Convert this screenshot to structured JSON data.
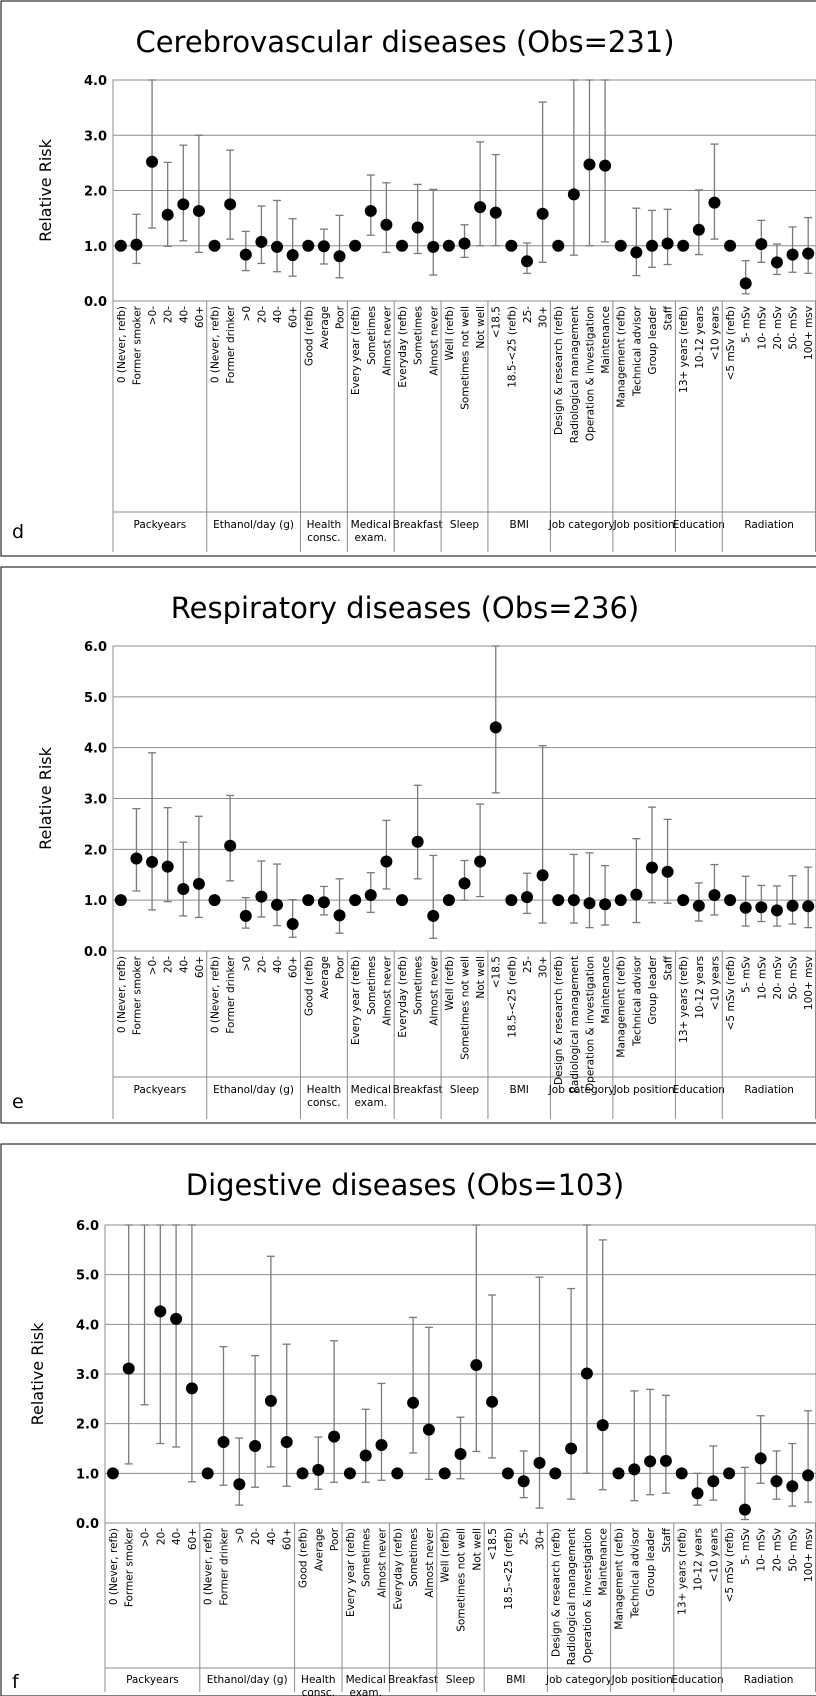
{
  "panels": [
    {
      "letter": "d",
      "title": "Cerebrovascular diseases (Obs=231)",
      "ylabel": "Relative Risk",
      "yticks": [
        "0.0",
        "1.0",
        "2.0",
        "3.0",
        "4.0"
      ]
    },
    {
      "letter": "e",
      "title": "Respiratory diseases (Obs=236)",
      "ylabel": "Relative Risk",
      "yticks": [
        "0.0",
        "1.0",
        "2.0",
        "3.0",
        "4.0",
        "5.0",
        "6.0"
      ]
    },
    {
      "letter": "f",
      "title": "Digestive diseases (Obs=103)",
      "ylabel": "Relative Risk",
      "yticks": [
        "0.0",
        "1.0",
        "2.0",
        "3.0",
        "4.0",
        "5.0",
        "6.0"
      ]
    }
  ],
  "categories": [
    "0 (Never, refb)",
    "Former smoker",
    ">0-",
    "20-",
    "40-",
    "60+",
    "0 (Never, refb)",
    "Former drinker",
    ">0",
    "20-",
    "40-",
    "60+",
    "Good (refb)",
    "Average",
    "Poor",
    "Every year (refb)",
    "Sometimes",
    "Almost never",
    "Everyday (refb)",
    "Sometimes",
    "Almost never",
    "Well (refb)",
    "Sometimes not well",
    "Not well",
    "<18.5",
    "18.5-<25 (refb)",
    "25-",
    "30+",
    "Design & research (refb)",
    "Radiological management",
    "Operation & investigation",
    "Maintenance",
    "Management (refb)",
    "Technical advisor",
    "Group leader",
    "Staff",
    "13+ years (refb)",
    "10-12 years",
    "<10 years",
    "<5 mSv (refb)",
    "5- mSv",
    "10- mSv",
    "20- mSv",
    "50- mSv",
    "100+ msv"
  ],
  "groups": [
    {
      "label": [
        "Packyears"
      ],
      "size": 6
    },
    {
      "label": [
        "Ethanol/day (g)"
      ],
      "size": 6
    },
    {
      "label": [
        "Health",
        "consc."
      ],
      "size": 3
    },
    {
      "label": [
        "Medical",
        "exam."
      ],
      "size": 3
    },
    {
      "label": [
        "Breakfast"
      ],
      "size": 3
    },
    {
      "label": [
        "Sleep"
      ],
      "size": 3
    },
    {
      "label": [
        "BMI"
      ],
      "size": 4
    },
    {
      "label": [
        "Job category"
      ],
      "size": 4
    },
    {
      "label": [
        "Job position"
      ],
      "size": 4
    },
    {
      "label": [
        "Education"
      ],
      "size": 3
    },
    {
      "label": [
        "Radiation"
      ],
      "size": 6
    }
  ],
  "chart_data": [
    {
      "type": "scatter",
      "title": "Cerebrovascular diseases (Obs=231)",
      "ylabel": "Relative Risk",
      "ylim": [
        0,
        4
      ],
      "grid": true,
      "values": [
        1.0,
        1.02,
        2.52,
        1.56,
        1.75,
        1.63,
        1.0,
        1.75,
        0.84,
        1.07,
        0.98,
        0.83,
        1.0,
        0.99,
        0.81,
        1.0,
        1.63,
        1.38,
        1.0,
        1.33,
        0.98,
        1.0,
        1.04,
        1.7,
        1.6,
        1.0,
        0.72,
        1.58,
        1.0,
        1.93,
        2.47,
        2.45,
        1.0,
        0.88,
        1.0,
        1.04,
        1.0,
        1.29,
        1.78,
        1.0,
        0.32,
        1.03,
        0.7,
        0.84,
        0.86
      ],
      "lower": [
        null,
        0.68,
        1.32,
        0.99,
        1.09,
        0.88,
        null,
        1.12,
        0.55,
        0.68,
        0.53,
        0.45,
        null,
        0.67,
        0.42,
        null,
        1.19,
        0.88,
        null,
        0.86,
        0.47,
        null,
        0.79,
        1.0,
        1.0,
        null,
        0.5,
        0.7,
        null,
        0.83,
        1.0,
        1.07,
        null,
        0.46,
        0.61,
        0.66,
        null,
        0.84,
        1.12,
        null,
        0.13,
        0.7,
        0.48,
        0.52,
        0.5
      ],
      "upper": [
        null,
        1.57,
        4.0,
        2.51,
        2.82,
        3.0,
        null,
        2.73,
        1.26,
        1.72,
        1.82,
        1.49,
        null,
        1.3,
        1.55,
        null,
        2.28,
        2.14,
        null,
        2.11,
        2.02,
        null,
        1.38,
        2.88,
        2.65,
        null,
        1.05,
        3.6,
        null,
        4.0,
        4.0,
        4.0,
        null,
        1.68,
        1.64,
        1.66,
        null,
        2.01,
        2.84,
        null,
        0.73,
        1.46,
        1.03,
        1.34,
        1.51
      ]
    },
    {
      "type": "scatter",
      "title": "Respiratory diseases (Obs=236)",
      "ylabel": "Relative Risk",
      "ylim": [
        0,
        6
      ],
      "grid": true,
      "values": [
        1.0,
        1.82,
        1.75,
        1.66,
        1.22,
        1.32,
        1.0,
        2.07,
        0.69,
        1.07,
        0.91,
        0.53,
        1.0,
        0.96,
        0.7,
        1.0,
        1.1,
        1.76,
        1.0,
        2.15,
        0.69,
        1.0,
        1.33,
        1.76,
        4.4,
        1.0,
        1.06,
        1.49,
        1.0,
        1.0,
        0.94,
        0.92,
        1.0,
        1.11,
        1.64,
        1.56,
        1.0,
        0.89,
        1.1,
        1.0,
        0.85,
        0.86,
        0.8,
        0.89,
        0.88
      ],
      "lower": [
        null,
        1.18,
        0.81,
        0.97,
        0.69,
        0.66,
        null,
        1.38,
        0.45,
        0.67,
        0.5,
        0.27,
        null,
        0.71,
        0.35,
        null,
        0.76,
        1.22,
        null,
        1.42,
        0.25,
        null,
        1.0,
        1.07,
        3.11,
        null,
        0.74,
        0.55,
        null,
        0.55,
        0.46,
        0.51,
        null,
        0.56,
        0.95,
        0.94,
        null,
        0.59,
        0.71,
        null,
        0.49,
        0.58,
        0.49,
        0.53,
        0.46
      ],
      "upper": [
        null,
        2.8,
        3.9,
        2.82,
        2.14,
        2.65,
        null,
        3.06,
        1.05,
        1.77,
        1.71,
        1.01,
        null,
        1.27,
        1.42,
        null,
        1.54,
        2.57,
        null,
        3.26,
        1.88,
        null,
        1.78,
        2.89,
        6.0,
        null,
        1.53,
        4.04,
        null,
        1.9,
        1.93,
        1.68,
        null,
        2.21,
        2.83,
        2.59,
        null,
        1.34,
        1.7,
        null,
        1.47,
        1.29,
        1.28,
        1.48,
        1.65
      ]
    },
    {
      "type": "scatter",
      "title": "Digestive diseases (Obs=103)",
      "ylabel": "Relative Risk",
      "ylim": [
        0,
        6
      ],
      "grid": true,
      "values": [
        1.0,
        3.11,
        null,
        4.26,
        4.11,
        2.71,
        1.0,
        1.63,
        0.78,
        1.55,
        2.46,
        1.63,
        1.0,
        1.07,
        1.74,
        1.0,
        1.36,
        1.57,
        1.0,
        2.42,
        1.88,
        1.0,
        1.39,
        3.18,
        2.44,
        1.0,
        0.84,
        1.21,
        1.0,
        1.5,
        3.01,
        1.97,
        1.0,
        1.08,
        1.24,
        1.25,
        1.0,
        0.6,
        0.84,
        1.0,
        0.27,
        1.3,
        0.84,
        0.74,
        0.96
      ],
      "lower": [
        null,
        1.19,
        2.38,
        1.6,
        1.53,
        0.83,
        null,
        0.76,
        0.36,
        0.72,
        1.13,
        0.74,
        null,
        0.68,
        0.82,
        null,
        0.82,
        0.86,
        null,
        1.41,
        0.88,
        null,
        0.89,
        1.44,
        1.31,
        null,
        0.51,
        0.3,
        null,
        0.48,
        1.0,
        0.67,
        null,
        0.45,
        0.57,
        0.6,
        null,
        0.36,
        0.46,
        null,
        0.07,
        0.8,
        0.48,
        0.34,
        0.42
      ],
      "upper": [
        null,
        6.0,
        6.0,
        6.0,
        6.0,
        6.0,
        null,
        3.55,
        1.71,
        3.37,
        5.37,
        3.6,
        null,
        1.73,
        3.67,
        null,
        2.29,
        2.81,
        null,
        4.14,
        3.94,
        null,
        2.13,
        6.0,
        4.59,
        null,
        1.45,
        4.95,
        null,
        4.72,
        6.0,
        5.7,
        null,
        2.66,
        2.69,
        2.57,
        null,
        1.0,
        1.55,
        null,
        1.12,
        2.16,
        1.45,
        1.6,
        2.26
      ]
    }
  ]
}
